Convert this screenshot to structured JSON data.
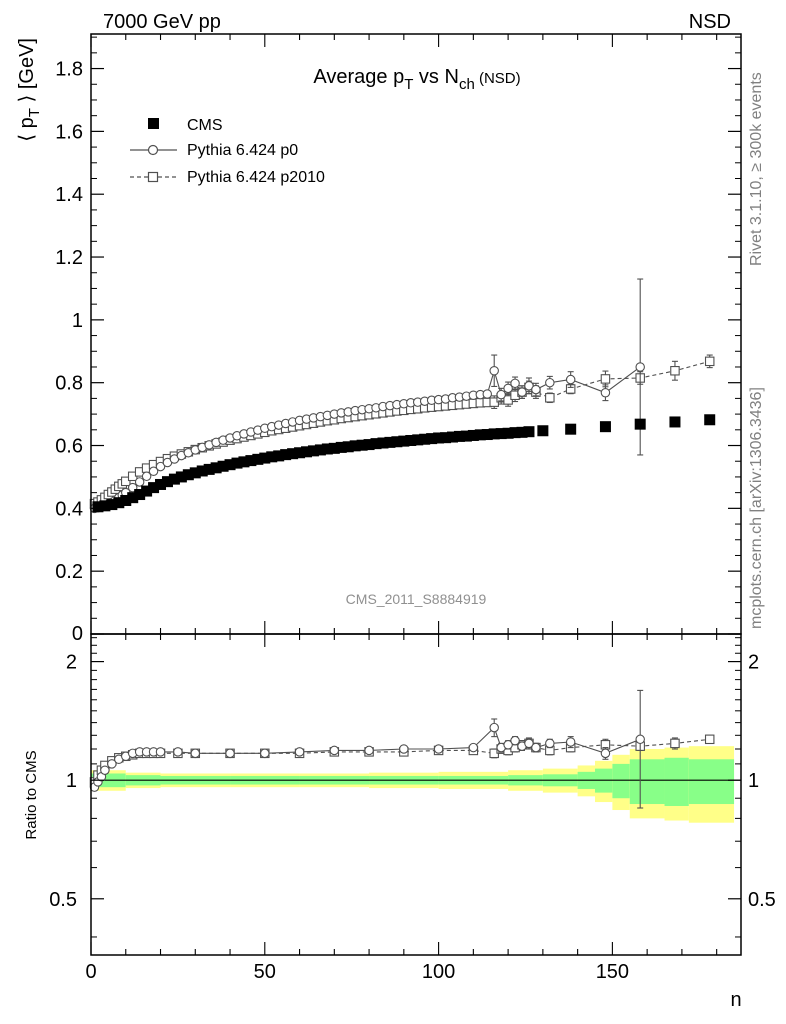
{
  "header": {
    "left": "7000 GeV pp",
    "right": "NSD"
  },
  "side_labels": {
    "rivet": "Rivet 3.1.10, ≥ 300k events",
    "mcplots": "mcplots.cern.ch [arXiv:1306.3436]"
  },
  "watermark": "CMS_2011_S8884919",
  "chart_data": [
    {
      "type": "scatter",
      "panel": "main",
      "title": "Average p_T vs N_ch (NSD)",
      "title_parts": {
        "pre": "Average p",
        "sub1": "T",
        "mid": " vs N",
        "sub2": "ch",
        "post": " (NSD)"
      },
      "ylabel": "⟨ p_T ⟩ [GeV]",
      "ylabel_parts": {
        "pre": "⟨ p",
        "sub": "T",
        "post": " ⟩ [GeV]"
      },
      "xlim": [
        0,
        187
      ],
      "ylim": [
        0,
        1.91
      ],
      "y_ticks": [
        "0",
        "0.2",
        "0.4",
        "0.6",
        "0.8",
        "1",
        "1.2",
        "1.4",
        "1.6",
        "1.8"
      ],
      "y_tick_values": [
        0,
        0.2,
        0.4,
        0.6,
        0.8,
        1,
        1.2,
        1.4,
        1.6,
        1.8
      ],
      "legend_position": "top-left",
      "series": [
        {
          "name": "CMS",
          "marker": "filled-square",
          "x": [
            2,
            4,
            6,
            8,
            10,
            12,
            14,
            16,
            18,
            20,
            22,
            24,
            26,
            28,
            30,
            32,
            34,
            36,
            38,
            40,
            42,
            44,
            46,
            48,
            50,
            52,
            54,
            56,
            58,
            60,
            62,
            64,
            66,
            68,
            70,
            72,
            74,
            76,
            78,
            80,
            82,
            84,
            86,
            88,
            90,
            92,
            94,
            96,
            98,
            100,
            102,
            104,
            106,
            108,
            110,
            112,
            114,
            116,
            118,
            120,
            122,
            124,
            126,
            130,
            138,
            148,
            158,
            168,
            178
          ],
          "y": [
            0.405,
            0.408,
            0.412,
            0.418,
            0.425,
            0.434,
            0.444,
            0.455,
            0.466,
            0.476,
            0.485,
            0.493,
            0.5,
            0.507,
            0.513,
            0.519,
            0.524,
            0.529,
            0.534,
            0.539,
            0.544,
            0.548,
            0.552,
            0.556,
            0.56,
            0.564,
            0.567,
            0.571,
            0.574,
            0.577,
            0.58,
            0.583,
            0.586,
            0.589,
            0.591,
            0.594,
            0.596,
            0.599,
            0.601,
            0.603,
            0.606,
            0.608,
            0.61,
            0.612,
            0.614,
            0.616,
            0.618,
            0.62,
            0.622,
            0.624,
            0.625,
            0.627,
            0.629,
            0.63,
            0.632,
            0.634,
            0.635,
            0.637,
            0.638,
            0.639,
            0.641,
            0.642,
            0.644,
            0.647,
            0.652,
            0.66,
            0.668,
            0.675,
            0.682
          ]
        },
        {
          "name": "Pythia 6.424 p0",
          "marker": "open-circle",
          "line": "solid",
          "x": [
            1,
            2,
            3,
            4,
            5,
            6,
            7,
            8,
            9,
            10,
            12,
            14,
            16,
            18,
            20,
            22,
            24,
            26,
            28,
            30,
            32,
            34,
            36,
            38,
            40,
            42,
            44,
            46,
            48,
            50,
            52,
            54,
            56,
            58,
            60,
            62,
            64,
            66,
            68,
            70,
            72,
            74,
            76,
            78,
            80,
            82,
            84,
            86,
            88,
            90,
            92,
            94,
            96,
            98,
            100,
            102,
            104,
            106,
            108,
            110,
            112,
            114,
            116,
            118,
            120,
            122,
            124,
            126,
            128,
            132,
            138,
            148,
            158
          ],
          "y": [
            0.4,
            0.402,
            0.405,
            0.408,
            0.413,
            0.419,
            0.426,
            0.434,
            0.442,
            0.45,
            0.466,
            0.484,
            0.502,
            0.518,
            0.533,
            0.546,
            0.557,
            0.568,
            0.577,
            0.586,
            0.594,
            0.602,
            0.61,
            0.617,
            0.624,
            0.631,
            0.637,
            0.643,
            0.649,
            0.655,
            0.66,
            0.665,
            0.67,
            0.675,
            0.68,
            0.684,
            0.688,
            0.692,
            0.696,
            0.7,
            0.704,
            0.707,
            0.711,
            0.714,
            0.717,
            0.72,
            0.724,
            0.727,
            0.73,
            0.733,
            0.736,
            0.738,
            0.741,
            0.744,
            0.746,
            0.748,
            0.752,
            0.754,
            0.757,
            0.76,
            0.762,
            0.764,
            0.838,
            0.762,
            0.782,
            0.798,
            0.77,
            0.79,
            0.778,
            0.8,
            0.81,
            0.768,
            0.85
          ],
          "yerr": [
            0,
            0,
            0,
            0,
            0,
            0,
            0,
            0,
            0,
            0,
            0,
            0,
            0,
            0,
            0,
            0,
            0,
            0,
            0,
            0,
            0,
            0,
            0,
            0,
            0,
            0,
            0,
            0,
            0,
            0,
            0,
            0,
            0,
            0,
            0,
            0,
            0,
            0,
            0,
            0,
            0,
            0,
            0,
            0,
            0,
            0,
            0,
            0,
            0,
            0,
            0,
            0,
            0,
            0,
            0,
            0,
            0,
            0,
            0,
            0,
            0,
            0,
            0.05,
            0.02,
            0.02,
            0.02,
            0.02,
            0.025,
            0.02,
            0.02,
            0.025,
            0.025,
            0.28
          ]
        },
        {
          "name": "Pythia 6.424 p2010",
          "marker": "open-square",
          "line": "dashed",
          "x": [
            1,
            2,
            3,
            4,
            5,
            6,
            7,
            8,
            9,
            10,
            12,
            14,
            16,
            18,
            20,
            22,
            24,
            26,
            28,
            30,
            32,
            34,
            36,
            38,
            40,
            42,
            44,
            46,
            48,
            50,
            52,
            54,
            56,
            58,
            60,
            62,
            64,
            66,
            68,
            70,
            72,
            74,
            76,
            78,
            80,
            82,
            84,
            86,
            88,
            90,
            92,
            94,
            96,
            98,
            100,
            102,
            104,
            106,
            108,
            110,
            112,
            114,
            116,
            118,
            120,
            122,
            124,
            126,
            128,
            132,
            138,
            148,
            158,
            168,
            178
          ],
          "y": [
            0.415,
            0.42,
            0.427,
            0.435,
            0.444,
            0.452,
            0.461,
            0.47,
            0.478,
            0.486,
            0.502,
            0.516,
            0.528,
            0.539,
            0.549,
            0.558,
            0.566,
            0.573,
            0.58,
            0.587,
            0.593,
            0.599,
            0.605,
            0.611,
            0.617,
            0.622,
            0.627,
            0.632,
            0.637,
            0.642,
            0.647,
            0.651,
            0.655,
            0.659,
            0.663,
            0.667,
            0.671,
            0.675,
            0.679,
            0.682,
            0.686,
            0.689,
            0.692,
            0.695,
            0.698,
            0.701,
            0.704,
            0.707,
            0.71,
            0.712,
            0.715,
            0.717,
            0.72,
            0.722,
            0.724,
            0.726,
            0.728,
            0.73,
            0.732,
            0.734,
            0.736,
            0.737,
            0.738,
            0.752,
            0.745,
            0.76,
            0.77,
            0.785,
            0.77,
            0.752,
            0.78,
            0.812,
            0.815,
            0.838,
            0.868
          ],
          "yerr": [
            0,
            0,
            0,
            0,
            0,
            0,
            0,
            0,
            0,
            0,
            0,
            0,
            0,
            0,
            0,
            0,
            0,
            0,
            0,
            0,
            0,
            0,
            0,
            0,
            0,
            0,
            0,
            0,
            0,
            0,
            0,
            0,
            0,
            0,
            0,
            0,
            0,
            0,
            0,
            0,
            0,
            0,
            0,
            0,
            0,
            0,
            0,
            0,
            0,
            0,
            0,
            0,
            0,
            0,
            0,
            0,
            0,
            0,
            0,
            0,
            0,
            0,
            0.02,
            0.02,
            0.02,
            0.02,
            0.02,
            0.02,
            0.02,
            0.015,
            0.015,
            0.025,
            0.02,
            0.03,
            0.02
          ]
        }
      ]
    },
    {
      "type": "scatter",
      "panel": "ratio",
      "ylabel": "Ratio to CMS",
      "xlabel": "n",
      "xlim": [
        0,
        187
      ],
      "ylim": [
        0.36,
        2.35
      ],
      "y_scale": "log",
      "x_ticks": [
        "0",
        "50",
        "100",
        "150"
      ],
      "x_tick_values": [
        0,
        50,
        100,
        150
      ],
      "y_ticks": [
        "0.5",
        "1",
        "2"
      ],
      "y_tick_values": [
        0.5,
        1,
        2
      ],
      "colors": {
        "inner_band": "#88ff88",
        "outer_band": "#ffff88",
        "reference_line": "#000000"
      },
      "bands": {
        "x_edges": [
          0,
          10,
          20,
          40,
          60,
          80,
          100,
          120,
          130,
          140,
          145,
          150,
          155,
          165,
          172,
          185
        ],
        "inner_half": [
          0.04,
          0.03,
          0.025,
          0.025,
          0.025,
          0.025,
          0.025,
          0.03,
          0.035,
          0.05,
          0.07,
          0.1,
          0.13,
          0.14,
          0.13,
          0.13
        ],
        "outer_half": [
          0.06,
          0.045,
          0.04,
          0.04,
          0.04,
          0.045,
          0.05,
          0.06,
          0.07,
          0.09,
          0.12,
          0.16,
          0.2,
          0.21,
          0.22,
          0.22
        ]
      },
      "series": [
        {
          "name": "Pythia 6.424 p0",
          "x": [
            1,
            2,
            3,
            4,
            6,
            8,
            10,
            12,
            14,
            16,
            18,
            20,
            25,
            30,
            40,
            50,
            60,
            70,
            80,
            90,
            100,
            110,
            116,
            118,
            120,
            122,
            124,
            126,
            128,
            132,
            138,
            148,
            158
          ],
          "y": [
            0.96,
            0.99,
            1.02,
            1.06,
            1.1,
            1.13,
            1.15,
            1.17,
            1.18,
            1.18,
            1.18,
            1.18,
            1.18,
            1.17,
            1.17,
            1.17,
            1.18,
            1.19,
            1.19,
            1.2,
            1.2,
            1.21,
            1.36,
            1.21,
            1.23,
            1.26,
            1.22,
            1.24,
            1.21,
            1.24,
            1.25,
            1.17,
            1.27
          ],
          "yerr": [
            0,
            0,
            0,
            0,
            0,
            0,
            0,
            0,
            0,
            0,
            0,
            0,
            0,
            0,
            0,
            0,
            0,
            0,
            0,
            0,
            0,
            0,
            0.07,
            0.03,
            0.03,
            0.03,
            0.03,
            0.04,
            0.03,
            0.03,
            0.04,
            0.04,
            0.42
          ]
        },
        {
          "name": "Pythia 6.424 p2010",
          "x": [
            1,
            2,
            3,
            4,
            6,
            8,
            10,
            12,
            14,
            16,
            18,
            20,
            25,
            30,
            40,
            50,
            60,
            70,
            80,
            90,
            100,
            110,
            116,
            118,
            120,
            122,
            124,
            126,
            128,
            132,
            138,
            148,
            158,
            168,
            178
          ],
          "y": [
            0.99,
            1.03,
            1.06,
            1.09,
            1.12,
            1.14,
            1.15,
            1.16,
            1.17,
            1.17,
            1.17,
            1.17,
            1.17,
            1.17,
            1.17,
            1.17,
            1.17,
            1.18,
            1.18,
            1.18,
            1.19,
            1.19,
            1.17,
            1.2,
            1.19,
            1.21,
            1.23,
            1.24,
            1.21,
            1.19,
            1.21,
            1.23,
            1.22,
            1.24,
            1.27
          ],
          "yerr": [
            0,
            0,
            0,
            0,
            0,
            0,
            0,
            0,
            0,
            0,
            0,
            0,
            0,
            0,
            0,
            0,
            0,
            0,
            0,
            0,
            0,
            0,
            0.03,
            0.03,
            0.03,
            0.03,
            0.03,
            0.03,
            0.03,
            0.03,
            0.03,
            0.04,
            0.03,
            0.04,
            0.03
          ]
        }
      ]
    }
  ]
}
